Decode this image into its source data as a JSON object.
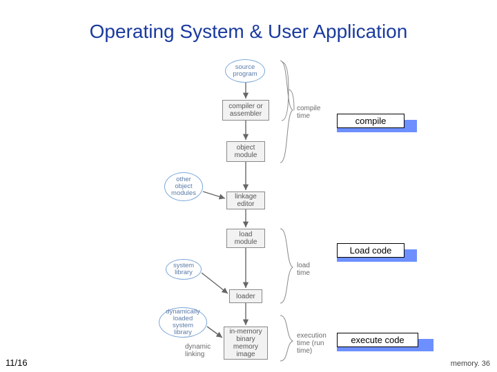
{
  "title": "Operating System & User Application",
  "footer_left": "11/16",
  "footer_right": "memory. 36",
  "phases": {
    "compile": "compile",
    "load": "Load code",
    "execute": "execute code"
  },
  "boxes": {
    "compiler": "compiler or\nassembler",
    "object_module": "object\nmodule",
    "linkage_editor": "linkage\neditor",
    "load_module": "load\nmodule",
    "loader": "loader",
    "memory_image": "in-memory\nbinary\nmemory\nimage",
    "dynamic_linking": "dynamic\nlinking"
  },
  "ovals": {
    "source": "source\nprogram",
    "other_obj": "other\nobject\nmodules",
    "syslib": "system\nlibrary",
    "dynlib": "dynamically\nloaded\nsystem\nlibrary"
  },
  "stage_text": {
    "compile_time": "compile\ntime",
    "load_time": "load\ntime",
    "exec_time": "execution\ntime (run\ntime)"
  },
  "style": {
    "title_color": "#1a3a9e",
    "box_bg": "#f2f2f2",
    "oval_border": "#7aa6d8",
    "arrow_color": "#666666",
    "bracket_color": "#888888",
    "phase_bg": "#6d8fff"
  }
}
